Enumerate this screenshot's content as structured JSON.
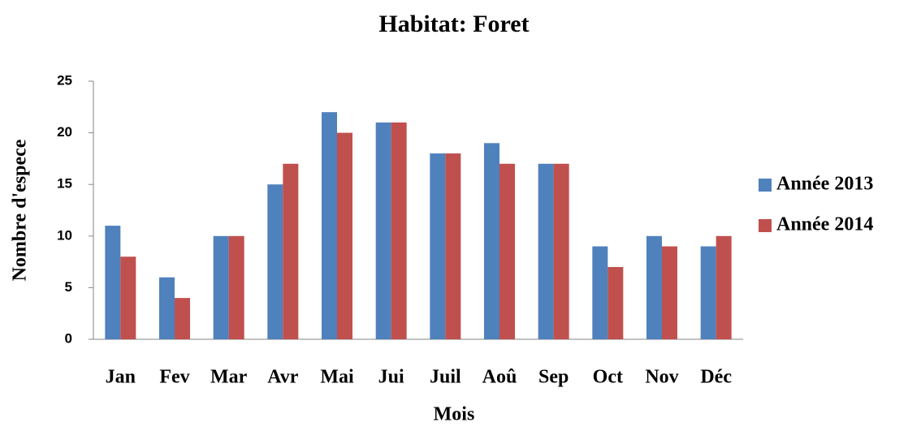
{
  "chart_data": {
    "type": "bar",
    "title": "Habitat: Foret",
    "xlabel": "Mois",
    "ylabel": "Nombre d'espece",
    "categories": [
      "Jan",
      "Fev",
      "Mar",
      "Avr",
      "Mai",
      "Jui",
      "Juil",
      "Aoû",
      "Sep",
      "Oct",
      "Nov",
      "Déc"
    ],
    "series": [
      {
        "name": "Année 2013",
        "color": "#4f81bd",
        "values": [
          11,
          6,
          10,
          15,
          22,
          21,
          18,
          19,
          17,
          9,
          10,
          9
        ]
      },
      {
        "name": "Année 2014",
        "color": "#c0504d",
        "values": [
          8,
          4,
          10,
          17,
          20,
          21,
          18,
          17,
          17,
          7,
          9,
          10
        ]
      }
    ],
    "ylim": [
      0,
      25
    ],
    "yticks": [
      0,
      5,
      10,
      15,
      20,
      25
    ],
    "grid": false,
    "legend": "right"
  }
}
